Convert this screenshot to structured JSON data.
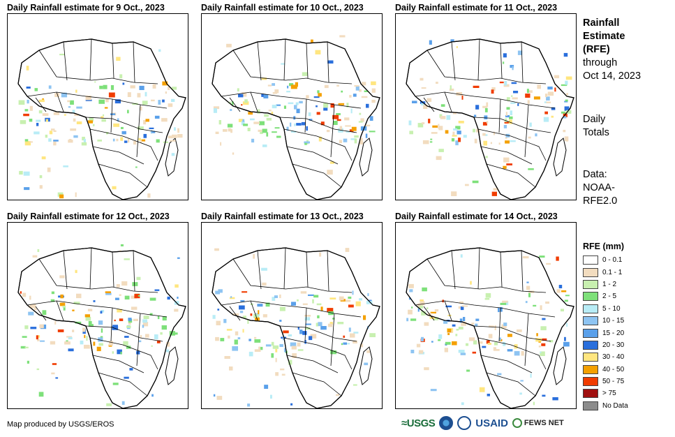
{
  "panels": [
    {
      "title": "Daily Rainfall estimate for 9 Oct., 2023"
    },
    {
      "title": "Daily Rainfall estimate for 10 Oct., 2023"
    },
    {
      "title": "Daily Rainfall estimate for 11 Oct., 2023"
    },
    {
      "title": "Daily Rainfall estimate for 12 Oct., 2023"
    },
    {
      "title": "Daily Rainfall estimate for 13 Oct., 2023"
    },
    {
      "title": "Daily Rainfall estimate for 14 Oct., 2023"
    }
  ],
  "side": {
    "title_line1": "Rainfall",
    "title_line2": "Estimate",
    "title_line3": "(RFE)",
    "through_line1": "through",
    "through_line2": "Oct 14, 2023",
    "totals_line1": "Daily",
    "totals_line2": "Totals",
    "data_line1": "Data:",
    "data_line2": "NOAA-",
    "data_line3": "RFE2.0"
  },
  "legend": {
    "title": "RFE (mm)",
    "items": [
      {
        "label": "0 - 0.1",
        "color": "#ffffff"
      },
      {
        "label": "0.1 - 1",
        "color": "#f2dcbf"
      },
      {
        "label": "1 - 2",
        "color": "#c8f0b0"
      },
      {
        "label": "2 - 5",
        "color": "#7ee07a"
      },
      {
        "label": "5 - 10",
        "color": "#b8ecf6"
      },
      {
        "label": "10 - 15",
        "color": "#8ec4f2"
      },
      {
        "label": "15 - 20",
        "color": "#5aa0ea"
      },
      {
        "label": "20 - 30",
        "color": "#2a6fdc"
      },
      {
        "label": "30 - 40",
        "color": "#ffe680"
      },
      {
        "label": "40 - 50",
        "color": "#f4a000"
      },
      {
        "label": "50 - 75",
        "color": "#f03c00"
      },
      {
        "label": "> 75",
        "color": "#a01010"
      },
      {
        "label": "No Data",
        "color": "#8c8c8c"
      }
    ]
  },
  "footer": {
    "credit": "Map produced by USGS/EROS",
    "logo_usgs": "≈USGS",
    "logo_usaid": "USAID",
    "logo_fews": "FEWS NET"
  }
}
